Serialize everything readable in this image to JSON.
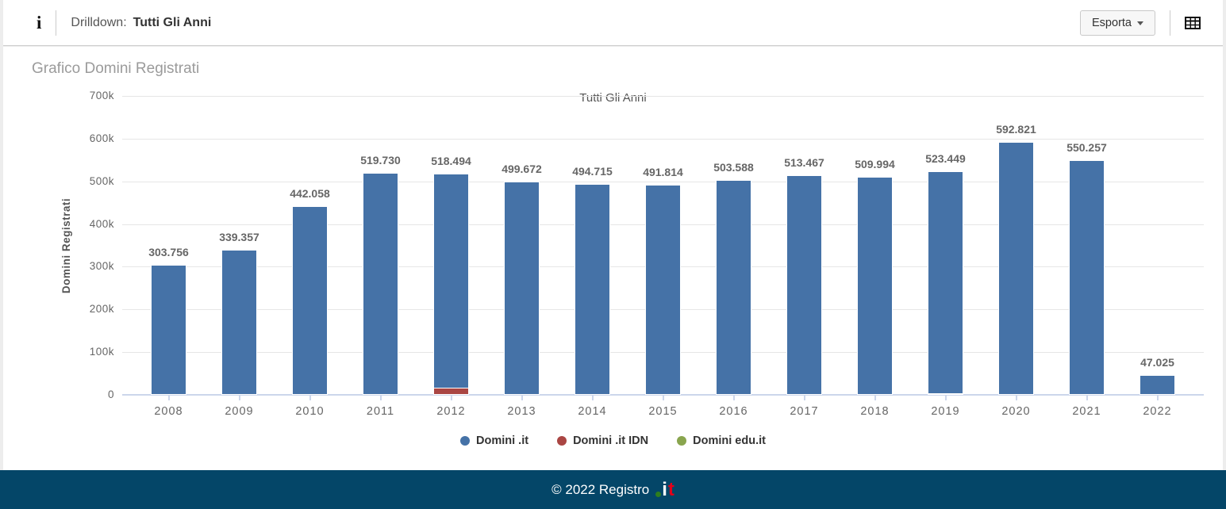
{
  "toolbar": {
    "drilldown_label": "Drilldown:",
    "drilldown_value": "Tutti Gli Anni",
    "export_label": "Esporta"
  },
  "panel": {
    "title": "Grafico Domini Registrati"
  },
  "chart_data": {
    "type": "bar",
    "title": "Tutti Gli Anni",
    "xlabel": "",
    "ylabel": "Domini Registrati",
    "ylim": [
      0,
      700000
    ],
    "ytick_step": 100000,
    "ytick_labels": [
      "0",
      "100k",
      "200k",
      "300k",
      "400k",
      "500k",
      "600k",
      "700k"
    ],
    "grid": true,
    "legend_position": "bottom",
    "categories": [
      "2008",
      "2009",
      "2010",
      "2011",
      "2012",
      "2013",
      "2014",
      "2015",
      "2016",
      "2017",
      "2018",
      "2019",
      "2020",
      "2021",
      "2022"
    ],
    "series": [
      {
        "name": "Domini .it",
        "color": "#4572A7",
        "data_labels": true,
        "values": [
          303756,
          339357,
          442058,
          519730,
          518494,
          499672,
          494715,
          491814,
          503588,
          513467,
          509994,
          523449,
          592821,
          550257,
          47025
        ]
      },
      {
        "name": "Domini .it IDN",
        "color": "#AA4643",
        "data_labels": false,
        "values": [
          0,
          0,
          0,
          0,
          17000,
          0,
          0,
          0,
          0,
          0,
          0,
          0,
          0,
          0,
          0
        ]
      },
      {
        "name": "Domini edu.it",
        "color": "#89A54E",
        "data_labels": false,
        "values": [
          0,
          0,
          0,
          0,
          0,
          0,
          0,
          0,
          0,
          0,
          0,
          3000,
          0,
          0,
          0
        ]
      }
    ]
  },
  "footer": {
    "copyright": "© 2022 Registro",
    "logo_i": "i",
    "logo_t": "t"
  }
}
